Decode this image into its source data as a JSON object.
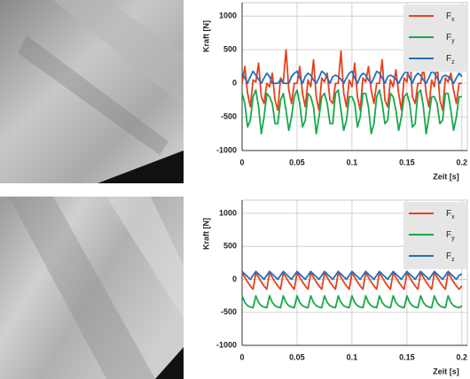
{
  "chart_data": [
    {
      "type": "line",
      "ylabel": "Kraft [N]",
      "xlabel": "Zeit [s]",
      "x": [
        0,
        0.0025,
        0.005,
        0.0075,
        0.01,
        0.0125,
        0.015,
        0.0175,
        0.02,
        0.0225,
        0.025,
        0.0275,
        0.03,
        0.0325,
        0.035,
        0.0375,
        0.04,
        0.0425,
        0.045,
        0.0475,
        0.05,
        0.0525,
        0.055,
        0.0575,
        0.06,
        0.0625,
        0.065,
        0.0675,
        0.07,
        0.0725,
        0.075,
        0.0775,
        0.08,
        0.0825,
        0.085,
        0.0875,
        0.09,
        0.0925,
        0.095,
        0.0975,
        0.1,
        0.1025,
        0.105,
        0.1075,
        0.11,
        0.1125,
        0.115,
        0.1175,
        0.12,
        0.1225,
        0.125,
        0.1275,
        0.13,
        0.1325,
        0.135,
        0.1375,
        0.14,
        0.1425,
        0.145,
        0.1475,
        0.15,
        0.1525,
        0.155,
        0.1575,
        0.16,
        0.1625,
        0.165,
        0.1675,
        0.17,
        0.1725,
        0.175,
        0.1775,
        0.18,
        0.1825,
        0.185,
        0.1875,
        0.19,
        0.1925,
        0.195,
        0.1975,
        0.2
      ],
      "series": [
        {
          "name": "Fx",
          "color": "#e8401c",
          "values": [
            0,
            250,
            -150,
            -350,
            50,
            20,
            300,
            -200,
            -300,
            0,
            -50,
            150,
            -250,
            -400,
            80,
            20,
            500,
            -100,
            -300,
            0,
            0,
            250,
            -150,
            -350,
            50,
            -50,
            350,
            -200,
            -400,
            80,
            20,
            150,
            -250,
            -300,
            0,
            0,
            480,
            -150,
            -350,
            50,
            -50,
            300,
            -200,
            -400,
            80,
            20,
            250,
            -100,
            -300,
            0,
            0,
            350,
            -250,
            -350,
            50,
            -50,
            200,
            -150,
            -400,
            80,
            20,
            450,
            -200,
            -300,
            0,
            0,
            250,
            -150,
            -350,
            50,
            -50,
            300,
            -250,
            -400,
            80,
            20,
            150,
            -100,
            -300,
            0,
            0
          ]
        },
        {
          "name": "Fy",
          "color": "#1aa84b",
          "values": [
            -150,
            -300,
            -650,
            -550,
            -200,
            -100,
            -350,
            -750,
            -500,
            -150,
            -200,
            -300,
            -600,
            -600,
            -250,
            -150,
            -400,
            -700,
            -500,
            -200,
            -100,
            -300,
            -650,
            -550,
            -150,
            -200,
            -350,
            -750,
            -500,
            -200,
            -150,
            -300,
            -600,
            -600,
            -150,
            -100,
            -400,
            -700,
            -550,
            -200,
            -200,
            -300,
            -650,
            -500,
            -150,
            -150,
            -350,
            -750,
            -600,
            -200,
            -100,
            -300,
            -600,
            -550,
            -150,
            -200,
            -400,
            -700,
            -500,
            -200,
            -150,
            -300,
            -650,
            -600,
            -150,
            -100,
            -350,
            -750,
            -500,
            -200,
            -200,
            -300,
            -600,
            -550,
            -150,
            -150,
            -400,
            -700,
            -500,
            -200,
            -200
          ]
        },
        {
          "name": "Fz",
          "color": "#1f6fc0",
          "values": [
            150,
            80,
            0,
            100,
            180,
            120,
            60,
            0,
            80,
            150,
            100,
            0,
            0,
            0,
            50,
            0,
            0,
            0,
            100,
            150,
            180,
            80,
            0,
            100,
            150,
            120,
            50,
            0,
            80,
            180,
            150,
            80,
            0,
            100,
            120,
            100,
            60,
            0,
            80,
            150,
            180,
            80,
            0,
            100,
            150,
            120,
            50,
            0,
            80,
            180,
            150,
            80,
            0,
            100,
            120,
            100,
            60,
            0,
            80,
            150,
            180,
            80,
            0,
            100,
            150,
            120,
            50,
            0,
            80,
            180,
            150,
            80,
            0,
            100,
            120,
            100,
            60,
            0,
            80,
            150,
            100
          ]
        }
      ],
      "xlim": [
        0,
        0.205
      ],
      "ylim": [
        -1000,
        1200
      ],
      "xticks": [
        0,
        0.05,
        0.1,
        0.15,
        0.2
      ],
      "yticks": [
        -1000,
        -500,
        0,
        500,
        1000
      ],
      "grid": true,
      "legend": "upper right"
    },
    {
      "type": "line",
      "ylabel": "Kraft [N]",
      "xlabel": "Zeit [s]",
      "x": [
        0,
        0.0025,
        0.005,
        0.0075,
        0.01,
        0.0125,
        0.015,
        0.0175,
        0.02,
        0.0225,
        0.025,
        0.0275,
        0.03,
        0.0325,
        0.035,
        0.0375,
        0.04,
        0.0425,
        0.045,
        0.0475,
        0.05,
        0.0525,
        0.055,
        0.0575,
        0.06,
        0.0625,
        0.065,
        0.0675,
        0.07,
        0.0725,
        0.075,
        0.0775,
        0.08,
        0.0825,
        0.085,
        0.0875,
        0.09,
        0.0925,
        0.095,
        0.0975,
        0.1,
        0.1025,
        0.105,
        0.1075,
        0.11,
        0.1125,
        0.115,
        0.1175,
        0.12,
        0.1225,
        0.125,
        0.1275,
        0.13,
        0.1325,
        0.135,
        0.1375,
        0.14,
        0.1425,
        0.145,
        0.1475,
        0.15,
        0.1525,
        0.155,
        0.1575,
        0.16,
        0.1625,
        0.165,
        0.1675,
        0.17,
        0.1725,
        0.175,
        0.1775,
        0.18,
        0.1825,
        0.185,
        0.1875,
        0.19,
        0.1925,
        0.195,
        0.1975,
        0.2
      ],
      "series": [
        {
          "name": "Fx",
          "color": "#e8401c",
          "values": [
            100,
            30,
            -40,
            -100,
            -150,
            100,
            30,
            -40,
            -100,
            -150,
            100,
            30,
            -40,
            -100,
            -150,
            100,
            30,
            -40,
            -100,
            -150,
            100,
            30,
            -40,
            -100,
            -150,
            100,
            30,
            -40,
            -100,
            -150,
            100,
            30,
            -40,
            -100,
            -150,
            100,
            30,
            -40,
            -100,
            -150,
            100,
            30,
            -40,
            -100,
            -150,
            100,
            30,
            -40,
            -100,
            -150,
            100,
            30,
            -40,
            -100,
            -150,
            100,
            30,
            -40,
            -100,
            -150,
            100,
            30,
            -40,
            -100,
            -150,
            100,
            30,
            -40,
            -100,
            -150,
            100,
            30,
            -40,
            -100,
            -150,
            100,
            30,
            -40,
            -100,
            -150,
            -100
          ]
        },
        {
          "name": "Fy",
          "color": "#1aa84b",
          "values": [
            -250,
            -350,
            -400,
            -420,
            -430,
            -250,
            -350,
            -400,
            -420,
            -430,
            -250,
            -350,
            -400,
            -420,
            -430,
            -250,
            -350,
            -400,
            -420,
            -430,
            -250,
            -350,
            -400,
            -420,
            -430,
            -250,
            -350,
            -400,
            -420,
            -430,
            -250,
            -350,
            -400,
            -420,
            -430,
            -250,
            -350,
            -400,
            -420,
            -430,
            -250,
            -350,
            -400,
            -420,
            -430,
            -250,
            -350,
            -400,
            -420,
            -430,
            -250,
            -350,
            -400,
            -420,
            -430,
            -250,
            -350,
            -400,
            -420,
            -430,
            -250,
            -350,
            -400,
            -420,
            -430,
            -250,
            -350,
            -400,
            -420,
            -430,
            -250,
            -350,
            -400,
            -420,
            -430,
            -250,
            -350,
            -400,
            -420,
            -430,
            -400
          ]
        },
        {
          "name": "Fz",
          "color": "#1f6fc0",
          "values": [
            120,
            80,
            40,
            0,
            60,
            120,
            80,
            40,
            0,
            60,
            120,
            80,
            40,
            0,
            60,
            120,
            80,
            40,
            0,
            60,
            120,
            80,
            40,
            0,
            60,
            120,
            80,
            40,
            0,
            60,
            120,
            80,
            40,
            0,
            60,
            120,
            80,
            40,
            0,
            60,
            120,
            80,
            40,
            0,
            60,
            120,
            80,
            40,
            0,
            60,
            120,
            80,
            40,
            0,
            60,
            120,
            80,
            40,
            0,
            60,
            120,
            80,
            40,
            0,
            60,
            120,
            80,
            40,
            0,
            60,
            120,
            80,
            40,
            0,
            60,
            120,
            80,
            40,
            0,
            60,
            80
          ]
        }
      ],
      "xlim": [
        0,
        0.205
      ],
      "ylim": [
        -1000,
        1200
      ],
      "xticks": [
        0,
        0.05,
        0.1,
        0.15,
        0.2
      ],
      "yticks": [
        -1000,
        -500,
        0,
        500,
        1000
      ],
      "grid": true,
      "legend": "upper right"
    }
  ]
}
